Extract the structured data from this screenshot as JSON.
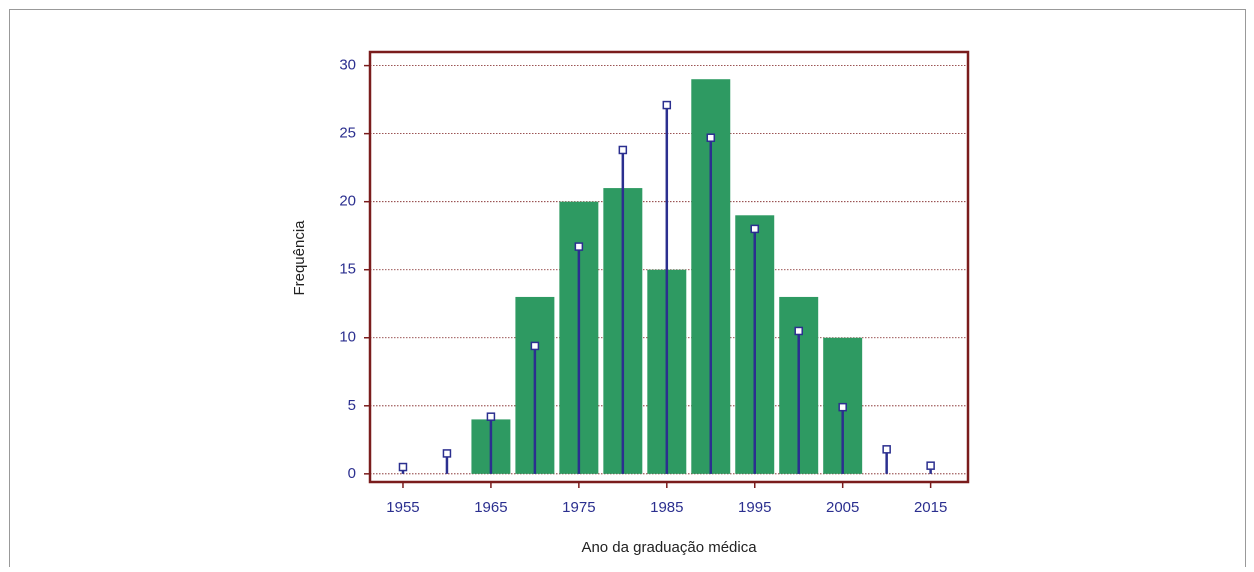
{
  "chart_data": {
    "type": "histogram",
    "xlabel": "Ano da graduação médica",
    "ylabel": "Frequência",
    "bins": [
      1962.5,
      1967.5,
      1972.5,
      1977.5,
      1982.5,
      1987.5,
      1992.5,
      1997.5,
      2002.5,
      2007.5
    ],
    "values": [
      4,
      13,
      20,
      21,
      15,
      29,
      19,
      13,
      10
    ],
    "color": "#2e9a62",
    "overlay": {
      "x": [
        1955,
        1960,
        1965,
        1970,
        1975,
        1980,
        1985,
        1990,
        1995,
        2000,
        2005,
        2010,
        2015
      ],
      "values": [
        0.5,
        1.5,
        4.2,
        9.4,
        16.7,
        23.8,
        27.1,
        24.7,
        18.0,
        10.5,
        4.9,
        1.8,
        0.6
      ],
      "color": "#2b2f8f"
    },
    "xlim": [
      1951.25,
      2019.25
    ],
    "xticks": [
      1955,
      1965,
      1975,
      1985,
      1995,
      2005,
      2015
    ],
    "ylim": [
      -0.6,
      31
    ],
    "yticks": [
      0,
      5,
      10,
      15,
      20,
      25,
      30
    ],
    "grid": true
  }
}
